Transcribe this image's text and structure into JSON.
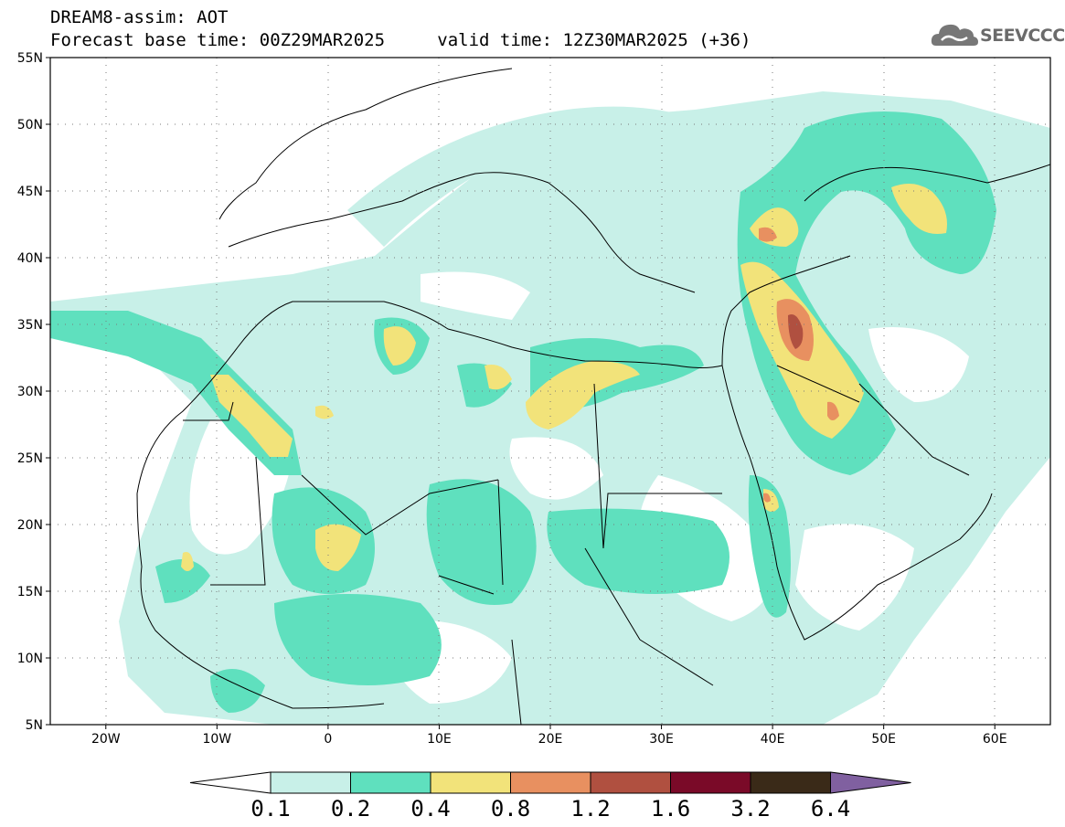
{
  "header": {
    "model_title": "DREAM8-assim: AOT",
    "base_time_label": "Forecast base time: 00Z29MAR2025",
    "valid_time_label": "valid time: 12Z30MAR2025 (+36)",
    "logo_text": "SEEVCCC"
  },
  "map": {
    "lon_range": [
      -25,
      65
    ],
    "lat_range": [
      5,
      55
    ],
    "lat_ticks": [
      "5N",
      "10N",
      "15N",
      "20N",
      "25N",
      "30N",
      "35N",
      "40N",
      "45N",
      "50N",
      "55N"
    ],
    "lon_ticks": [
      "20W",
      "10W",
      "0",
      "10E",
      "20E",
      "30E",
      "40E",
      "50E",
      "60E"
    ],
    "grid": "dotted"
  },
  "colorbar": {
    "labels": [
      "0.1",
      "0.2",
      "0.4",
      "0.8",
      "1.2",
      "1.6",
      "3.2",
      "6.4"
    ],
    "colors": [
      "#ffffff",
      "#c8f0e8",
      "#5fe0be",
      "#f2e37a",
      "#e89060",
      "#b05040",
      "#7a0a28",
      "#3a2a18",
      "#8060a0"
    ]
  }
}
